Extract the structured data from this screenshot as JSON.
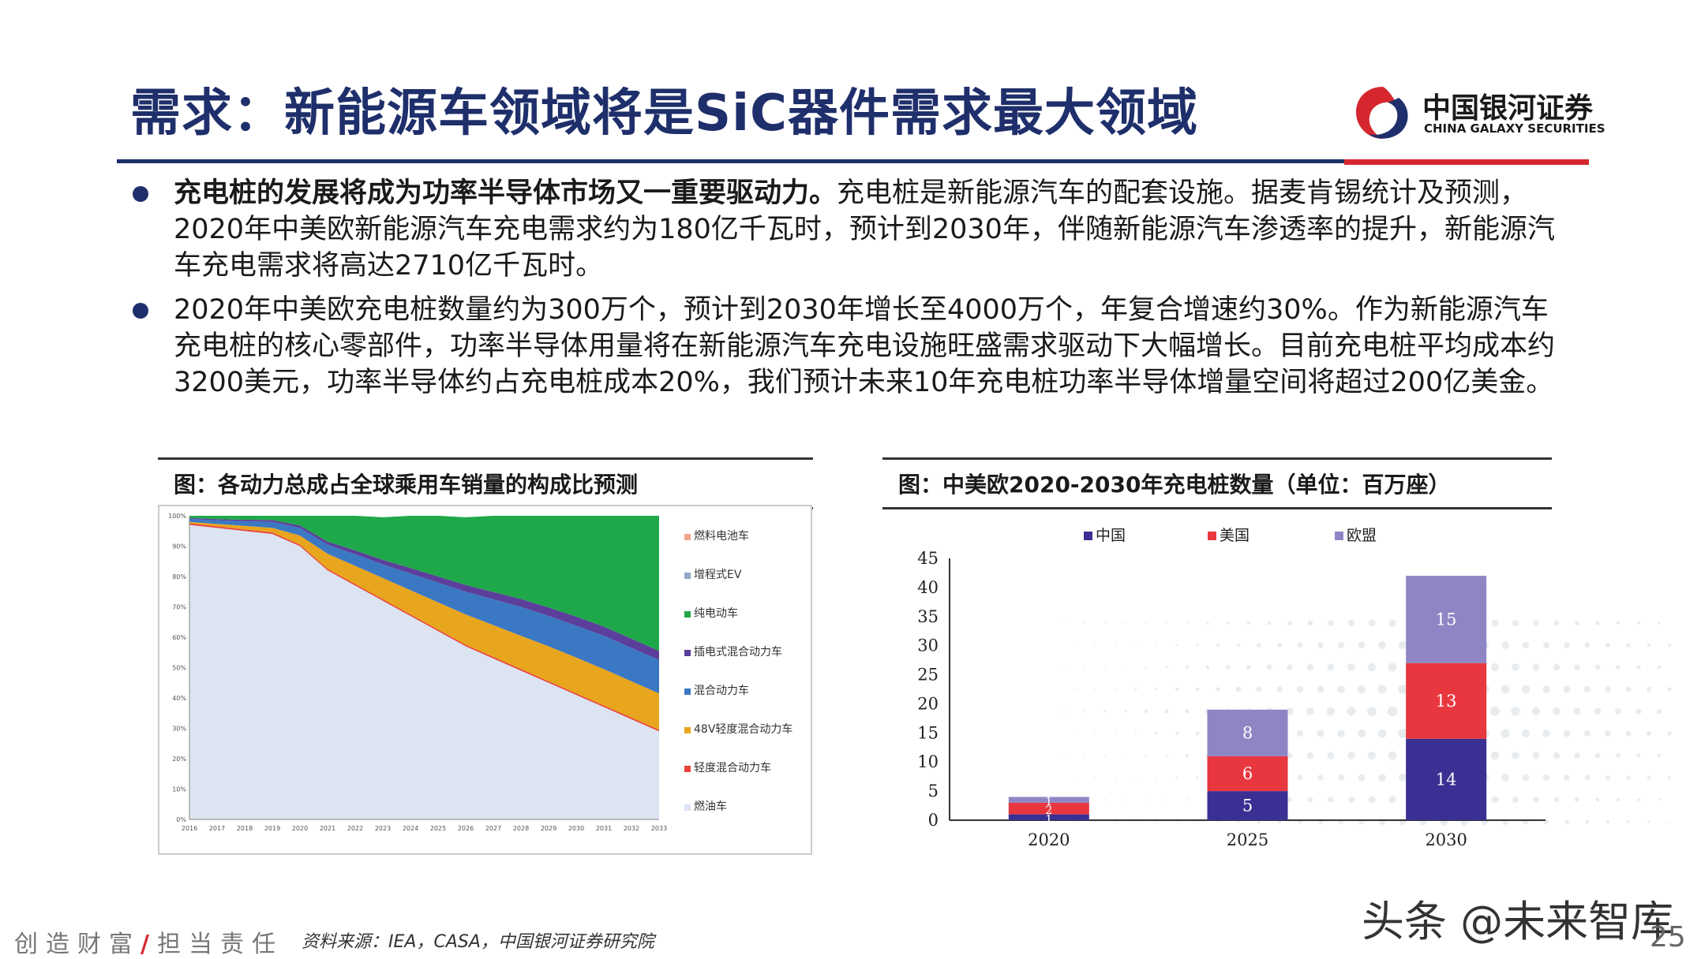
{
  "header": {
    "title": "需求：新能源车领域将是SiC器件需求最大领域",
    "logo_cn": "中国银河证券",
    "logo_en": "CHINA GALAXY SECURITIES"
  },
  "bullets": [
    {
      "bold": "充电桩的发展将成为功率半导体市场又一重要驱动力。",
      "text": "充电桩是新能源汽车的配套设施。据麦肯锡统计及预测，2020年中美欧新能源汽车充电需求约为180亿千瓦时，预计到2030年，伴随新能源汽车渗透率的提升，新能源汽车充电需求将高达2710亿千瓦时。"
    },
    {
      "bold": "",
      "text": "2020年中美欧充电桩数量约为300万个，预计到2030年增长至4000万个，年复合增速约30%。作为新能源汽车充电桩的核心零部件，功率半导体用量将在新能源汽车充电设施旺盛需求驱动下大幅增长。目前充电桩平均成本约3200美元，功率半导体约占充电桩成本20%，我们预计未来10年充电桩功率半导体增量空间将超过200亿美金。"
    }
  ],
  "left_panel": {
    "title": "图：各动力总成占全球乘用车销量的构成比预测"
  },
  "right_panel": {
    "title": "图：中美欧2020-2030年充电桩数量（单位：百万座）"
  },
  "chart_data": [
    {
      "type": "area",
      "stacked": true,
      "x": [
        "2016",
        "2017",
        "2018",
        "2019",
        "2020",
        "2021",
        "2022",
        "2023",
        "2024",
        "2025",
        "2026",
        "2027",
        "2028",
        "2029",
        "2030",
        "2031",
        "2032",
        "2033"
      ],
      "ylim": [
        0,
        100
      ],
      "yticks": [
        "0%",
        "10%",
        "20%",
        "30%",
        "40%",
        "50%",
        "60%",
        "70%",
        "80%",
        "90%",
        "100%"
      ],
      "legend_position": "right",
      "series": [
        {
          "name": "燃油车",
          "color": "#dbe4f0",
          "values": [
            97,
            96,
            95,
            94,
            90,
            82,
            77,
            72,
            67,
            62,
            57,
            53,
            49,
            45,
            41,
            37,
            33,
            29
          ]
        },
        {
          "name": "轻度混合动力车",
          "color": "#e8413a",
          "values": [
            0.5,
            0.5,
            0.5,
            0.5,
            0.5,
            0.5,
            0.5,
            0.5,
            0.5,
            0.5,
            0.5,
            0.5,
            0.5,
            0.5,
            0.5,
            0.5,
            0.5,
            0.5
          ]
        },
        {
          "name": "48V轻度混合动力车",
          "color": "#e8a51e",
          "values": [
            0.5,
            0.8,
            1.2,
            1.5,
            3,
            5,
            6,
            7,
            8,
            9,
            10,
            10.5,
            11,
            11.5,
            11.8,
            12,
            12,
            12
          ]
        },
        {
          "name": "混合动力车",
          "color": "#3b78c4",
          "values": [
            1,
            1.2,
            1.5,
            2,
            2.5,
            3,
            3.8,
            4.5,
            5.5,
            6.5,
            7.5,
            8.5,
            9.5,
            10,
            10.5,
            11,
            11,
            11
          ]
        },
        {
          "name": "插电式混合动力车",
          "color": "#5b3f9a",
          "values": [
            0.3,
            0.4,
            0.5,
            0.6,
            0.8,
            1,
            1.3,
            1.5,
            1.8,
            2,
            2.2,
            2.4,
            2.6,
            2.8,
            3,
            3,
            3,
            3
          ]
        },
        {
          "name": "纯电动车",
          "color": "#1fa84a",
          "values": [
            0.7,
            1.1,
            1.3,
            1.4,
            3.2,
            8.5,
            11.4,
            14,
            17.2,
            20,
            22.3,
            25.1,
            27.4,
            30.2,
            33.2,
            36.5,
            40.5,
            44.5
          ]
        },
        {
          "name": "增程式EV",
          "color": "#8ea9c9",
          "values": [
            0,
            0,
            0,
            0,
            0,
            0,
            0,
            0,
            0,
            0,
            0,
            0,
            0,
            0,
            0,
            0,
            0,
            0
          ]
        },
        {
          "name": "燃料电池车",
          "color": "#f2a68b",
          "values": [
            0,
            0,
            0,
            0,
            0,
            0,
            0,
            0,
            0,
            0,
            0,
            0,
            0,
            0,
            0,
            0,
            0,
            0
          ]
        }
      ]
    },
    {
      "type": "bar",
      "stacked": true,
      "categories": [
        "2020",
        "2025",
        "2030"
      ],
      "ylim": [
        0,
        45
      ],
      "yticks": [
        0,
        5,
        10,
        15,
        20,
        25,
        30,
        35,
        40,
        45
      ],
      "legend_position": "top",
      "series": [
        {
          "name": "中国",
          "color": "#3a2f92",
          "values": [
            1,
            5,
            14
          ],
          "labels": [
            "1",
            "5",
            "14"
          ]
        },
        {
          "name": "美国",
          "color": "#e8373f",
          "values": [
            2,
            6,
            13
          ],
          "labels": [
            "2",
            "6",
            "13"
          ]
        },
        {
          "name": "欧盟",
          "color": "#8e86c4",
          "values": [
            1,
            8,
            15
          ],
          "labels": [
            "1",
            "8",
            "15"
          ]
        }
      ]
    }
  ],
  "footer": {
    "slogan_left": "创造财富",
    "slash": "/",
    "slogan_right": "担当责任",
    "source": "资料来源：IEA，CASA，中国银河证券研究院",
    "watermark": "头条 @未来智库",
    "page": "25"
  }
}
